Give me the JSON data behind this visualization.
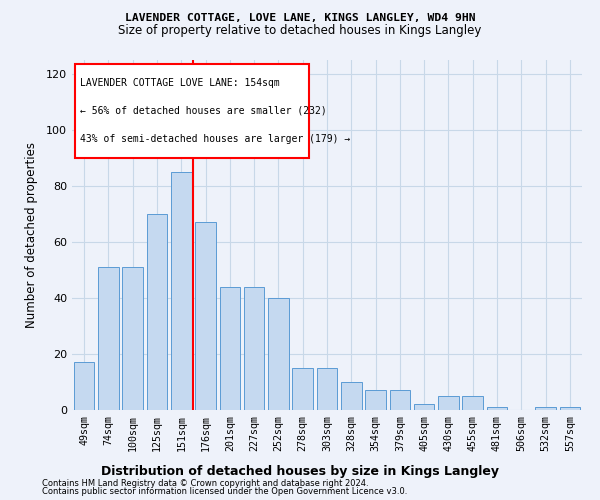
{
  "title1": "LAVENDER COTTAGE, LOVE LANE, KINGS LANGLEY, WD4 9HN",
  "title2": "Size of property relative to detached houses in Kings Langley",
  "xlabel": "Distribution of detached houses by size in Kings Langley",
  "ylabel": "Number of detached properties",
  "categories": [
    "49sqm",
    "74sqm",
    "100sqm",
    "125sqm",
    "151sqm",
    "176sqm",
    "201sqm",
    "227sqm",
    "252sqm",
    "278sqm",
    "303sqm",
    "328sqm",
    "354sqm",
    "379sqm",
    "405sqm",
    "430sqm",
    "455sqm",
    "481sqm",
    "506sqm",
    "532sqm",
    "557sqm"
  ],
  "bar_values": [
    17,
    51,
    51,
    70,
    85,
    67,
    44,
    44,
    40,
    15,
    15,
    10,
    7,
    7,
    2,
    5,
    5,
    1,
    0,
    1,
    1
  ],
  "bar_color": "#c5d9f0",
  "bar_edge_color": "#5b9bd5",
  "grid_color": "#c8d8e8",
  "bg_color": "#eef2fa",
  "vline_color": "red",
  "vline_pos": 4.5,
  "legend_text1": "LAVENDER COTTAGE LOVE LANE: 154sqm",
  "legend_text2": "← 56% of detached houses are smaller (232)",
  "legend_text3": "43% of semi-detached houses are larger (179) →",
  "legend_box_color": "white",
  "legend_box_edge": "red",
  "footnote1": "Contains HM Land Registry data © Crown copyright and database right 2024.",
  "footnote2": "Contains public sector information licensed under the Open Government Licence v3.0.",
  "ylim": [
    0,
    125
  ],
  "yticks": [
    0,
    20,
    40,
    60,
    80,
    100,
    120
  ]
}
